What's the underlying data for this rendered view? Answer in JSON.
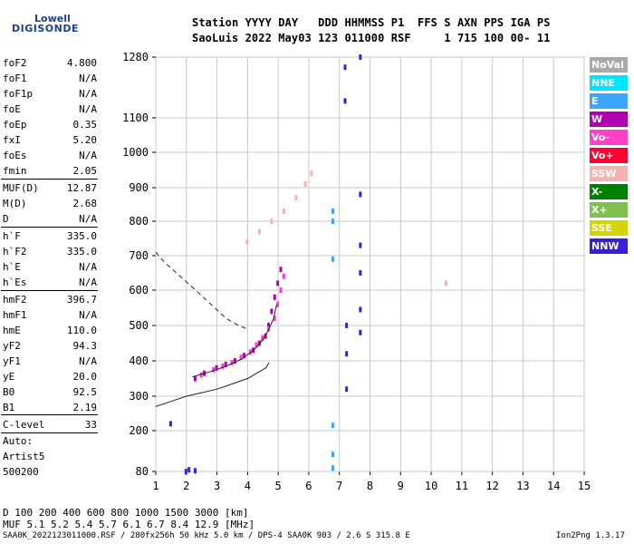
{
  "logo": {
    "line1": "Lowell",
    "line2": "DIGISONDE"
  },
  "header": {
    "line1": "Station YYYY DAY   DDD HHMMSS P1  FFS S AXN PPS IGA PS",
    "line2": "SaoLuis 2022 May03 123 011000 RSF     1 715 100 00- 11"
  },
  "params": [
    {
      "name": "foF2",
      "value": "4.800"
    },
    {
      "name": "foF1",
      "value": "N/A"
    },
    {
      "name": "foF1p",
      "value": "N/A"
    },
    {
      "name": "foE",
      "value": "N/A"
    },
    {
      "name": "foEp",
      "value": "0.35"
    },
    {
      "name": "fxI",
      "value": "5.20"
    },
    {
      "name": "foEs",
      "value": "N/A"
    },
    {
      "name": "fmin",
      "value": "2.05"
    },
    {
      "name": "MUF(D)",
      "value": "12.87"
    },
    {
      "name": "M(D)",
      "value": "2.68"
    },
    {
      "name": "D",
      "value": "N/A"
    },
    {
      "name": "h`F",
      "value": "335.0"
    },
    {
      "name": "h`F2",
      "value": "335.0"
    },
    {
      "name": "h`E",
      "value": "N/A"
    },
    {
      "name": "h`Es",
      "value": "N/A"
    },
    {
      "name": "hmF2",
      "value": "396.7"
    },
    {
      "name": "hmF1",
      "value": "N/A"
    },
    {
      "name": "hmE",
      "value": "110.0"
    },
    {
      "name": "yF2",
      "value": "94.3"
    },
    {
      "name": "yF1",
      "value": "N/A"
    },
    {
      "name": "yE",
      "value": "20.0"
    },
    {
      "name": "B0",
      "value": "92.5"
    },
    {
      "name": "B1",
      "value": "2.19"
    },
    {
      "name": "C-level",
      "value": "33"
    }
  ],
  "autoscaling": {
    "line1": "Auto:",
    "line2": "Artist5",
    "line3": "500200"
  },
  "legend": [
    {
      "label": "NoVal",
      "color": "#a9a9a9"
    },
    {
      "label": "NNE",
      "color": "#00e5ff"
    },
    {
      "label": "E",
      "color": "#3aa6ff"
    },
    {
      "label": "W",
      "color": "#b000b0"
    },
    {
      "label": "Vo-",
      "color": "#ff3fc8"
    },
    {
      "label": "Vo+",
      "color": "#ff0032"
    },
    {
      "label": "SSW",
      "color": "#f5b3ae"
    },
    {
      "label": "X-",
      "color": "#008000"
    },
    {
      "label": "X+",
      "color": "#7fbf4f"
    },
    {
      "label": "SSE",
      "color": "#d4d400"
    },
    {
      "label": "NNW",
      "color": "#3a1fd6"
    }
  ],
  "chart_data": {
    "type": "scatter",
    "xlim": [
      1,
      15
    ],
    "ylim": [
      80,
      1280
    ],
    "x_scale": "linear",
    "y_scale": "nonlinear (ionogram virtual height)",
    "x_ticks": [
      1,
      2,
      3,
      4,
      5,
      6,
      7,
      8,
      9,
      10,
      11,
      12,
      13,
      14,
      15
    ],
    "y_ticks": [
      80,
      200,
      300,
      400,
      500,
      600,
      700,
      800,
      900,
      1000,
      1100,
      1280
    ],
    "y_tick_labels": [
      "80",
      "200",
      "300",
      "400",
      "500",
      "600",
      "700",
      "800",
      "900",
      "1000",
      "1100",
      "1280"
    ],
    "grid": true,
    "series": [
      {
        "color_key": "W",
        "points": [
          [
            2.3,
            350
          ],
          [
            2.6,
            365
          ],
          [
            3.0,
            380
          ],
          [
            3.3,
            390
          ],
          [
            3.6,
            400
          ],
          [
            3.9,
            415
          ],
          [
            4.2,
            430
          ],
          [
            4.4,
            450
          ],
          [
            4.6,
            470
          ],
          [
            4.7,
            500
          ],
          [
            4.8,
            540
          ],
          [
            4.9,
            580
          ],
          [
            5.0,
            620
          ],
          [
            5.1,
            660
          ]
        ]
      },
      {
        "color_key": "Vo-",
        "points": [
          [
            2.5,
            360
          ],
          [
            2.9,
            375
          ],
          [
            3.2,
            385
          ],
          [
            3.5,
            395
          ],
          [
            3.8,
            410
          ],
          [
            4.1,
            425
          ],
          [
            4.3,
            445
          ],
          [
            4.5,
            465
          ],
          [
            4.7,
            490
          ],
          [
            4.9,
            520
          ],
          [
            5.0,
            560
          ],
          [
            5.1,
            600
          ],
          [
            5.2,
            640
          ]
        ]
      },
      {
        "color_key": "SSW",
        "points": [
          [
            4.0,
            740
          ],
          [
            4.4,
            770
          ],
          [
            4.8,
            800
          ],
          [
            5.2,
            830
          ],
          [
            5.6,
            870
          ],
          [
            5.9,
            910
          ],
          [
            6.1,
            940
          ],
          [
            10.5,
            620
          ]
        ]
      },
      {
        "color_key": "NNW",
        "points": [
          [
            1.5,
            220
          ],
          [
            2.0,
            80
          ],
          [
            2.1,
            85
          ],
          [
            2.3,
            82
          ],
          [
            7.2,
            1150
          ],
          [
            7.2,
            1250
          ],
          [
            7.25,
            500
          ],
          [
            7.25,
            420
          ],
          [
            7.25,
            320
          ],
          [
            7.7,
            1280
          ],
          [
            7.7,
            880
          ],
          [
            7.7,
            730
          ],
          [
            7.7,
            650
          ],
          [
            7.7,
            545
          ],
          [
            7.7,
            480
          ]
        ]
      },
      {
        "color_key": "E",
        "points": [
          [
            6.8,
            830
          ],
          [
            6.8,
            800
          ],
          [
            6.8,
            690
          ],
          [
            6.8,
            215
          ],
          [
            6.8,
            130
          ],
          [
            6.8,
            90
          ]
        ]
      }
    ],
    "curves": [
      {
        "style": "solid",
        "points": [
          [
            1,
            270
          ],
          [
            1.5,
            285
          ],
          [
            2,
            300
          ],
          [
            2.5,
            310
          ],
          [
            3,
            320
          ],
          [
            3.5,
            335
          ],
          [
            4,
            350
          ],
          [
            4.3,
            365
          ],
          [
            4.6,
            380
          ],
          [
            4.7,
            395
          ]
        ]
      },
      {
        "style": "dashed",
        "points": [
          [
            1,
            710
          ],
          [
            1.3,
            680
          ],
          [
            1.8,
            640
          ],
          [
            2.3,
            600
          ],
          [
            2.8,
            560
          ],
          [
            3.3,
            520
          ],
          [
            3.7,
            500
          ],
          [
            4.0,
            490
          ]
        ]
      },
      {
        "style": "solid",
        "points": [
          [
            2.2,
            355
          ],
          [
            2.8,
            370
          ],
          [
            3.3,
            385
          ],
          [
            3.8,
            405
          ],
          [
            4.2,
            430
          ],
          [
            4.5,
            460
          ],
          [
            4.7,
            490
          ],
          [
            4.85,
            520
          ],
          [
            4.95,
            560
          ]
        ]
      }
    ]
  },
  "footer": {
    "d_line": "D     100  200  400  600  800 1000 1500 3000 [km]",
    "muf_line": "MUF   5.1  5.2  5.4  5.7  6.1  6.7  8.4 12.9 [MHz]",
    "file_info": "SAA0K_2022123011000.RSF / 280fx256h 50 kHz 5.0 km / DPS-4 SAA0K 903 / 2.6 S 315.8 E",
    "version": "Ion2Png 1.3.17"
  }
}
